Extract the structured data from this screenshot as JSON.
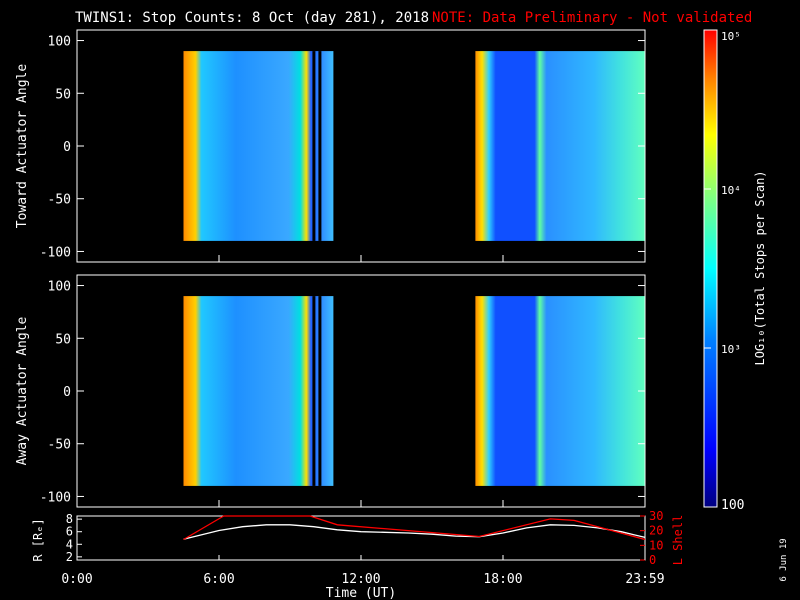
{
  "title": {
    "main": "TWINS1: Stop Counts:  8 Oct (day 281), 2018",
    "note": "NOTE: Data Preliminary - Not validated"
  },
  "side_date": "6 Jun 19",
  "colors": {
    "background": "#000000",
    "axis": "#ffffff",
    "note": "#ff0000",
    "r_line": "#ffffff",
    "lshell_line": "#ff0000"
  },
  "chart_data": [
    {
      "type": "heatmap",
      "panel": "toward",
      "ylabel": "Toward Actuator Angle",
      "ylim": [
        -110,
        110
      ],
      "yticks": [
        100,
        50,
        0,
        -50,
        -100
      ],
      "xlim": [
        0,
        24
      ],
      "data_blocks": [
        {
          "start": "4:30",
          "end": "10:50"
        },
        {
          "start": "16:50",
          "end": "23:59"
        }
      ],
      "data_angle_range": [
        -90,
        90
      ]
    },
    {
      "type": "heatmap",
      "panel": "away",
      "ylabel": "Away Actuator Angle",
      "ylim": [
        -110,
        110
      ],
      "yticks": [
        100,
        50,
        0,
        -50,
        -100
      ],
      "xlim": [
        0,
        24
      ],
      "data_blocks": [
        {
          "start": "4:30",
          "end": "10:50"
        },
        {
          "start": "16:50",
          "end": "23:59"
        }
      ],
      "data_angle_range": [
        -90,
        90
      ]
    },
    {
      "type": "line",
      "panel": "orbit",
      "ylabel_left": "R [Rₑ]",
      "ylabel_right": "L Shell",
      "xlabel": "Time (UT)",
      "xticks": [
        "0:00",
        "6:00",
        "12:00",
        "18:00",
        "23:59"
      ],
      "ylim_left": [
        1.5,
        8.5
      ],
      "yticks_left": [
        "8",
        "6",
        "4",
        "2"
      ],
      "ylim_right": [
        0,
        30
      ],
      "yticks_right": [
        "30",
        "20",
        "10",
        "0"
      ],
      "series": [
        {
          "axis": "left",
          "x": [
            4.5,
            6,
            7,
            8,
            9,
            10,
            11,
            12,
            13,
            14,
            15,
            16,
            17,
            18,
            19,
            20,
            21,
            22,
            23,
            24
          ],
          "y": [
            4.8,
            6.2,
            6.8,
            7.1,
            7.1,
            6.8,
            6.3,
            6.0,
            5.9,
            5.8,
            5.6,
            5.3,
            5.2,
            5.8,
            6.6,
            7.1,
            7.0,
            6.6,
            6.0,
            5.1
          ]
        },
        {
          "axis": "right",
          "x": [
            4.5,
            6.2,
            6.25,
            9.8,
            9.85,
            11,
            17,
            20,
            21,
            24
          ],
          "y": [
            14,
            30,
            30,
            30,
            30,
            24,
            16,
            28,
            27,
            14
          ]
        }
      ]
    },
    {
      "type": "colorbar",
      "label": "LOG₁₀(Total Stops per Scan)",
      "range": [
        100,
        100000
      ],
      "ticks": [
        {
          "value": 100,
          "label": "100"
        },
        {
          "value": 1000,
          "label": "10³"
        },
        {
          "value": 10000,
          "label": "10⁴"
        },
        {
          "value": 100000,
          "label": "10⁵"
        }
      ]
    }
  ]
}
